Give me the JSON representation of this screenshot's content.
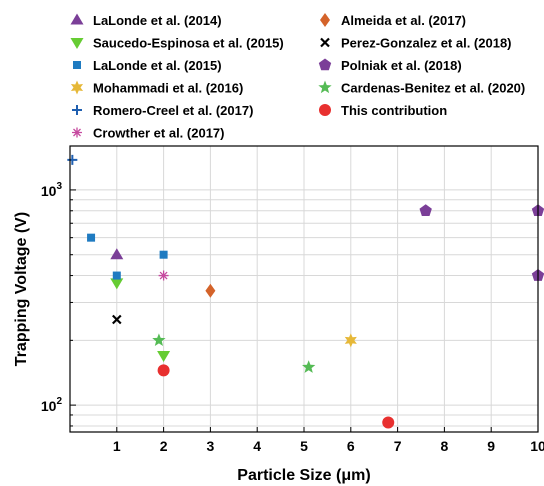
{
  "chart_data": {
    "type": "scatter",
    "xlabel": "Particle Size (μm)",
    "ylabel": "Trapping Voltage (V)",
    "xlim": [
      0,
      10
    ],
    "ylim": [
      75,
      1600
    ],
    "y_scale": "log",
    "grid": true,
    "legend_position": "top",
    "x_ticks": [
      1,
      2,
      3,
      4,
      5,
      6,
      7,
      8,
      9,
      10
    ],
    "y_tick_labels": [
      "10^2",
      "10^3"
    ],
    "series": [
      {
        "name": "LaLonde et al. (2014)",
        "marker": "triangle-up",
        "color": "#7b3f98",
        "points": [
          {
            "x": 1.0,
            "y": 500
          }
        ]
      },
      {
        "name": "Saucedo-Espinosa et al. (2015)",
        "marker": "triangle-down",
        "color": "#66cc33",
        "points": [
          {
            "x": 1.0,
            "y": 370
          },
          {
            "x": 2.0,
            "y": 170
          }
        ]
      },
      {
        "name": "LaLonde et al. (2015)",
        "marker": "square",
        "color": "#1f7bc1",
        "points": [
          {
            "x": 0.45,
            "y": 600
          },
          {
            "x": 1.0,
            "y": 400
          },
          {
            "x": 2.0,
            "y": 500
          }
        ]
      },
      {
        "name": "Mohammadi et al. (2016)",
        "marker": "star6",
        "color": "#e6b838",
        "points": [
          {
            "x": 6.0,
            "y": 200
          }
        ]
      },
      {
        "name": "Romero-Creel et al. (2017)",
        "marker": "plus",
        "color": "#1f5fb0",
        "points": [
          {
            "x": 0.05,
            "y": 1380
          }
        ]
      },
      {
        "name": "Crowther et al. (2017)",
        "marker": "asterisk",
        "color": "#c64a9f",
        "points": [
          {
            "x": 2.0,
            "y": 400
          }
        ]
      },
      {
        "name": "Almeida et al. (2017)",
        "marker": "diamond",
        "color": "#d4632a",
        "points": [
          {
            "x": 3.0,
            "y": 340
          }
        ]
      },
      {
        "name": "Perez-Gonzalez et al. (2018)",
        "marker": "x",
        "color": "#000000",
        "points": [
          {
            "x": 1.0,
            "y": 250
          }
        ]
      },
      {
        "name": "Polniak et al. (2018)",
        "marker": "pentagon",
        "color": "#7b3f98",
        "points": [
          {
            "x": 7.6,
            "y": 800
          },
          {
            "x": 10.0,
            "y": 800
          },
          {
            "x": 10.0,
            "y": 400
          }
        ]
      },
      {
        "name": "Cardenas-Benitez et al. (2020)",
        "marker": "star5",
        "color": "#55bb55",
        "points": [
          {
            "x": 1.9,
            "y": 200
          },
          {
            "x": 5.1,
            "y": 150
          }
        ]
      },
      {
        "name": "This contribution",
        "marker": "circle",
        "color": "#e8302f",
        "points": [
          {
            "x": 2.0,
            "y": 145
          },
          {
            "x": 6.8,
            "y": 83
          }
        ]
      }
    ]
  }
}
